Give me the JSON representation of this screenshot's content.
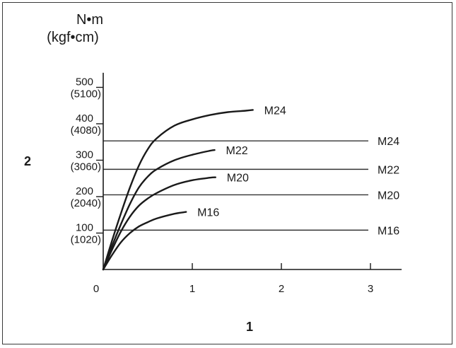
{
  "chart_data": {
    "type": "line",
    "ylabel_line1": "N•m",
    "ylabel_line2": "(kgf•cm)",
    "xlabel_marker": "1",
    "ylabel_marker": "2",
    "xlim": [
      0,
      3.35
    ],
    "ylim": [
      0,
      540
    ],
    "x_ticks": [
      {
        "value": 0,
        "label": "0"
      },
      {
        "value": 1,
        "label": "1"
      },
      {
        "value": 2,
        "label": "2"
      },
      {
        "value": 3,
        "label": "3"
      }
    ],
    "y_ticks": [
      {
        "value": 100,
        "label": "100",
        "label2": "(1020)"
      },
      {
        "value": 200,
        "label": "200",
        "label2": "(2040)"
      },
      {
        "value": 300,
        "label": "300",
        "label2": "(3060)"
      },
      {
        "value": 400,
        "label": "400",
        "label2": "(4080)"
      },
      {
        "value": 500,
        "label": "500",
        "label2": "(5100)"
      }
    ],
    "series": [
      {
        "name": "M24",
        "x": [
          0,
          0.1,
          0.2,
          0.3,
          0.4,
          0.5,
          0.6,
          0.8,
          1.0,
          1.2,
          1.4,
          1.6,
          1.68
        ],
        "values": [
          0,
          80,
          155,
          225,
          285,
          330,
          360,
          395,
          412,
          424,
          432,
          436,
          438
        ]
      },
      {
        "name": "M22",
        "x": [
          0,
          0.1,
          0.2,
          0.3,
          0.4,
          0.5,
          0.6,
          0.8,
          1.0,
          1.2,
          1.25
        ],
        "values": [
          0,
          65,
          125,
          180,
          225,
          255,
          275,
          300,
          315,
          326,
          328
        ]
      },
      {
        "name": "M20",
        "x": [
          0,
          0.1,
          0.2,
          0.3,
          0.4,
          0.5,
          0.6,
          0.8,
          1.0,
          1.2,
          1.26
        ],
        "values": [
          0,
          55,
          105,
          145,
          175,
          195,
          210,
          232,
          245,
          252,
          253
        ]
      },
      {
        "name": "M16",
        "x": [
          0,
          0.1,
          0.2,
          0.3,
          0.4,
          0.5,
          0.6,
          0.8,
          0.93
        ],
        "values": [
          0,
          40,
          75,
          100,
          118,
          130,
          140,
          153,
          158
        ]
      }
    ],
    "reference_lines": [
      {
        "name": "M24",
        "value": 353
      },
      {
        "name": "M22",
        "value": 275
      },
      {
        "name": "M20",
        "value": 205
      },
      {
        "name": "M16",
        "value": 108
      }
    ],
    "colors": {
      "line": "#1a1a1a",
      "grid": "#333333"
    }
  }
}
